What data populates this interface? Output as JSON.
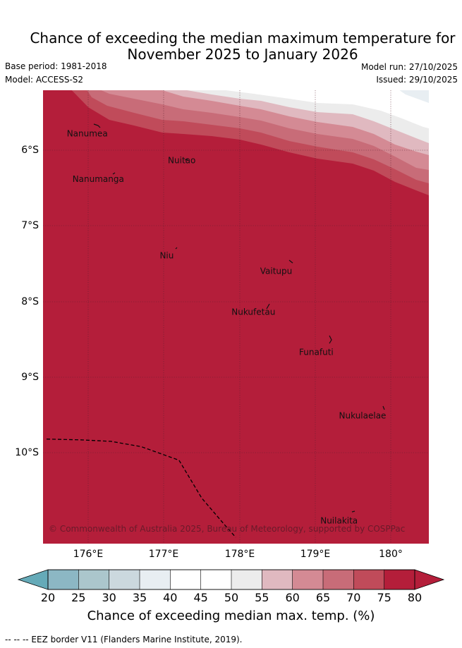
{
  "title_line1": "Chance of exceeding the median maximum temperature for",
  "title_line2": "November 2025 to January 2026",
  "base_period": "Base period: 1981-2018",
  "model": "Model: ACCESS-S2",
  "model_run": "Model run: 27/10/2025",
  "issued": "Issued: 29/10/2025",
  "copyright": "© Commonwealth of Australia 2025, Bureau of Meteorology, supported by COSPPac",
  "chart_data": {
    "type": "heatmap",
    "title": "Chance of exceeding the median maximum temperature for November 2025 to January 2026",
    "lon_range": [
      175.4,
      180.5
    ],
    "lat_range": [
      -11.2,
      -5.2
    ],
    "x_ticks": [
      176,
      177,
      178,
      179,
      180
    ],
    "x_tick_labels": [
      "176°E",
      "177°E",
      "178°E",
      "179°E",
      "180°"
    ],
    "y_ticks": [
      -6,
      -7,
      -8,
      -9,
      -10
    ],
    "y_tick_labels": [
      "6°S",
      "7°S",
      "8°S",
      "9°S",
      "10°S"
    ],
    "colorbar": {
      "label": "Chance of exceeding median max. temp. (%)",
      "ticks": [
        20,
        25,
        30,
        35,
        40,
        45,
        50,
        55,
        60,
        65,
        70,
        75,
        80
      ],
      "colors": [
        "#65aab8",
        "#8cb7c4",
        "#abc6cc",
        "#cbd8de",
        "#e8eef2",
        "#ffffff",
        "#ffffff",
        "#ececec",
        "#e0b9c0",
        "#d48a94",
        "#c86c78",
        "#c04b5a",
        "#b41e3a"
      ]
    },
    "places": [
      {
        "name": "Nanumea",
        "lon": 176.1,
        "lat": -5.67
      },
      {
        "name": "Nuitao",
        "lon": 177.33,
        "lat": -6.1
      },
      {
        "name": "Nanumanga",
        "lon": 176.32,
        "lat": -6.3
      },
      {
        "name": "Niu",
        "lon": 177.15,
        "lat": -7.3
      },
      {
        "name": "Vaitupu",
        "lon": 178.67,
        "lat": -7.48
      },
      {
        "name": "Nukufetau",
        "lon": 178.37,
        "lat": -8.03
      },
      {
        "name": "Funafuti",
        "lon": 179.2,
        "lat": -8.52
      },
      {
        "name": "Nukulaelae",
        "lon": 179.83,
        "lat": -9.38
      },
      {
        "name": "Nuilakita",
        "lon": 179.52,
        "lat": -10.78
      }
    ],
    "eez_border": {
      "lon": [
        175.45,
        175.9,
        176.3,
        176.7,
        177.2,
        177.5,
        177.8,
        177.95
      ],
      "lat": [
        -9.82,
        -9.83,
        -9.85,
        -9.92,
        -10.1,
        -10.6,
        -10.95,
        -11.12
      ]
    }
  },
  "footnote": "--  --  -- EEZ border V11 (Flanders Marine Institute, 2019)."
}
